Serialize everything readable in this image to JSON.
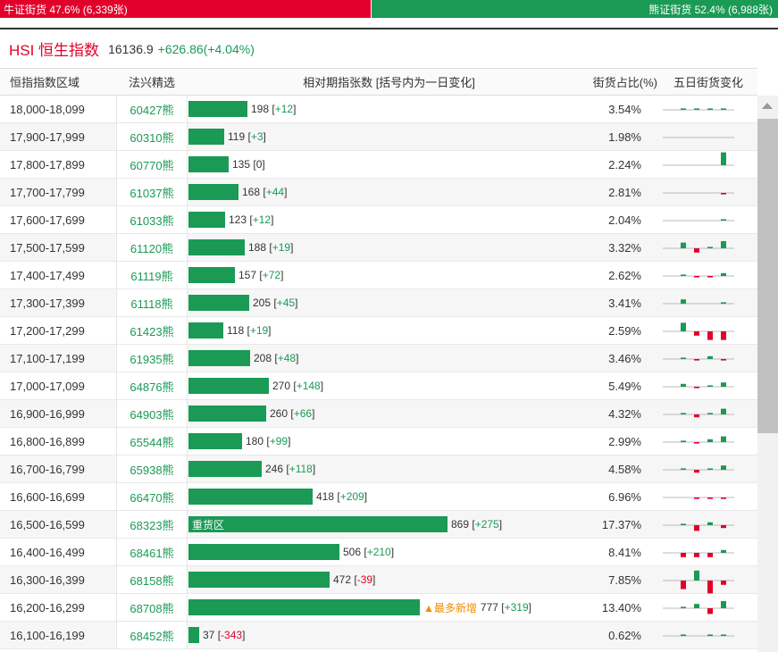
{
  "topbar": {
    "bull_label": "牛证街货 47.6% (6,339张)",
    "bull_pct": 47.6,
    "bear_label": "熊证街货 52.4% (6,988张)"
  },
  "index": {
    "name": "HSI 恒生指数",
    "price": "16136.9",
    "change": "+626.86(+4.04%)"
  },
  "headers": {
    "range": "恒指指数区域",
    "pick": "法兴精选",
    "relative": "相对期指张数 [括号内为一日变化]",
    "share": "街货占比(%)",
    "five_day": "五日街货变化"
  },
  "max_count": 869,
  "colors": {
    "bull_red": "#e2002a",
    "bear_green": "#1a9a55",
    "hot_orange": "#f08c00"
  },
  "rows": [
    {
      "range": "18,000-18,099",
      "pick": "60427熊",
      "count": 198,
      "count_text": "198",
      "delta": "+12",
      "share": "3.54%",
      "spark": [
        1,
        1,
        1,
        1,
        9
      ]
    },
    {
      "range": "17,900-17,999",
      "pick": "60310熊",
      "count": 119,
      "count_text": "119",
      "delta": "+3",
      "share": "1.98%",
      "spark": [
        0,
        0,
        0,
        0,
        9
      ]
    },
    {
      "range": "17,800-17,899",
      "pick": "60770熊",
      "count": 135,
      "count_text": "135",
      "delta": "0",
      "share": "2.24%",
      "spark": [
        0,
        0,
        0,
        9,
        0
      ]
    },
    {
      "range": "17,700-17,799",
      "pick": "61037熊",
      "count": 168,
      "count_text": "168",
      "delta": "+44",
      "share": "2.81%",
      "spark": [
        0,
        0,
        0,
        -1,
        9
      ]
    },
    {
      "range": "17,600-17,699",
      "pick": "61033熊",
      "count": 123,
      "count_text": "123",
      "delta": "+12",
      "share": "2.04%",
      "spark": [
        0,
        0,
        0,
        1,
        9
      ]
    },
    {
      "range": "17,500-17,599",
      "pick": "61120熊",
      "count": 188,
      "count_text": "188",
      "delta": "+19",
      "share": "3.32%",
      "spark": [
        4,
        -3,
        1,
        5,
        9
      ]
    },
    {
      "range": "17,400-17,499",
      "pick": "61119熊",
      "count": 157,
      "count_text": "157",
      "delta": "+72",
      "share": "2.62%",
      "spark": [
        1,
        -1,
        -1,
        2,
        9
      ]
    },
    {
      "range": "17,300-17,399",
      "pick": "61118熊",
      "count": 205,
      "count_text": "205",
      "delta": "+45",
      "share": "3.41%",
      "spark": [
        3,
        0,
        0,
        1,
        9
      ]
    },
    {
      "range": "17,200-17,299",
      "pick": "61423熊",
      "count": 118,
      "count_text": "118",
      "delta": "+19",
      "share": "2.59%",
      "spark": [
        6,
        -3,
        -6,
        -6,
        9
      ]
    },
    {
      "range": "17,100-17,199",
      "pick": "61935熊",
      "count": 208,
      "count_text": "208",
      "delta": "+48",
      "share": "3.46%",
      "spark": [
        1,
        -1,
        2,
        -1,
        9
      ]
    },
    {
      "range": "17,000-17,099",
      "pick": "64876熊",
      "count": 270,
      "count_text": "270",
      "delta": "+148",
      "share": "5.49%",
      "spark": [
        2,
        -1,
        1,
        3,
        9
      ]
    },
    {
      "range": "16,900-16,999",
      "pick": "64903熊",
      "count": 260,
      "count_text": "260",
      "delta": "+66",
      "share": "4.32%",
      "spark": [
        1,
        -2,
        1,
        4,
        9
      ]
    },
    {
      "range": "16,800-16,899",
      "pick": "65544熊",
      "count": 180,
      "count_text": "180",
      "delta": "+99",
      "share": "2.99%",
      "spark": [
        1,
        -1,
        2,
        4,
        9
      ]
    },
    {
      "range": "16,700-16,799",
      "pick": "65938熊",
      "count": 246,
      "count_text": "246",
      "delta": "+118",
      "share": "4.58%",
      "spark": [
        1,
        -2,
        1,
        3,
        9
      ]
    },
    {
      "range": "16,600-16,699",
      "pick": "66470熊",
      "count": 418,
      "count_text": "418",
      "delta": "+209",
      "share": "6.96%",
      "spark": [
        0,
        -1,
        -1,
        -1,
        9
      ]
    },
    {
      "range": "16,500-16,599",
      "pick": "68323熊",
      "count": 869,
      "count_text": "869",
      "delta": "+275",
      "share": "17.37%",
      "tag": "重货区",
      "spark": [
        1,
        -4,
        2,
        -2,
        9
      ]
    },
    {
      "range": "16,400-16,499",
      "pick": "68461熊",
      "count": 506,
      "count_text": "506",
      "delta": "+210",
      "share": "8.41%",
      "spark": [
        -3,
        -3,
        -3,
        2,
        9
      ]
    },
    {
      "range": "16,300-16,399",
      "pick": "68158熊",
      "count": 472,
      "count_text": "472",
      "delta": "-39",
      "share": "7.85%",
      "spark": [
        -6,
        7,
        -9,
        -3,
        0
      ]
    },
    {
      "range": "16,200-16,299",
      "pick": "68708熊",
      "count": 777,
      "count_text": "777",
      "delta": "+319",
      "share": "13.40%",
      "hot": "▲最多新增",
      "spark": [
        1,
        3,
        -4,
        5,
        9
      ]
    },
    {
      "range": "16,100-16,199",
      "pick": "68452熊",
      "count": 37,
      "count_text": "37",
      "delta": "-343",
      "share": "0.62%",
      "spark": [
        1,
        0,
        1,
        1,
        -9
      ]
    }
  ]
}
